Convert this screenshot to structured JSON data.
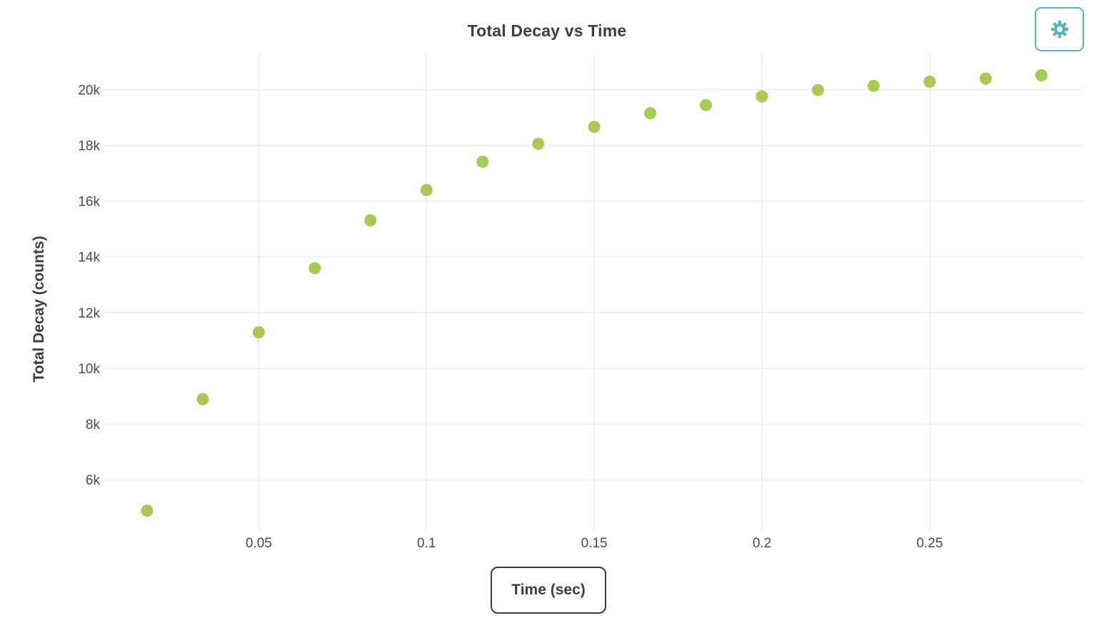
{
  "header": {
    "title": "Total Decay vs Time"
  },
  "toolbar": {
    "settings_icon": "gear-icon"
  },
  "colors": {
    "accent_teal": "#56b6bb",
    "marker_green": "#a6ca52",
    "grid_gray": "#ececec",
    "text_dark": "#3d3d3d",
    "tick_text": "#4a4a4a"
  },
  "chart_data": {
    "type": "scatter",
    "title": "Total Decay vs Time",
    "xlabel": "Time (sec)",
    "ylabel": "Total Decay (counts)",
    "xlim": [
      0,
      0.296
    ],
    "ylim": [
      4200,
      21300
    ],
    "grid": true,
    "legend": false,
    "x_ticks": [
      0.05,
      0.1,
      0.15,
      0.2,
      0.25
    ],
    "x_tick_labels": [
      "0.05",
      "0.1",
      "0.15",
      "0.2",
      "0.25"
    ],
    "y_ticks": [
      6000,
      8000,
      10000,
      12000,
      14000,
      16000,
      18000,
      20000
    ],
    "y_tick_labels": [
      "6k",
      "8k",
      "10k",
      "12k",
      "14k",
      "16k",
      "18k",
      "20k"
    ],
    "points": [
      {
        "x": 0.0167,
        "y": 4900
      },
      {
        "x": 0.0333,
        "y": 8900
      },
      {
        "x": 0.05,
        "y": 11300
      },
      {
        "x": 0.0667,
        "y": 13600
      },
      {
        "x": 0.0833,
        "y": 15320
      },
      {
        "x": 0.1,
        "y": 16400
      },
      {
        "x": 0.1167,
        "y": 17420
      },
      {
        "x": 0.1333,
        "y": 18060
      },
      {
        "x": 0.15,
        "y": 18670
      },
      {
        "x": 0.1667,
        "y": 19160
      },
      {
        "x": 0.1833,
        "y": 19450
      },
      {
        "x": 0.2,
        "y": 19760
      },
      {
        "x": 0.2167,
        "y": 19990
      },
      {
        "x": 0.2333,
        "y": 20140
      },
      {
        "x": 0.25,
        "y": 20290
      },
      {
        "x": 0.2667,
        "y": 20400
      },
      {
        "x": 0.2833,
        "y": 20520
      }
    ]
  }
}
